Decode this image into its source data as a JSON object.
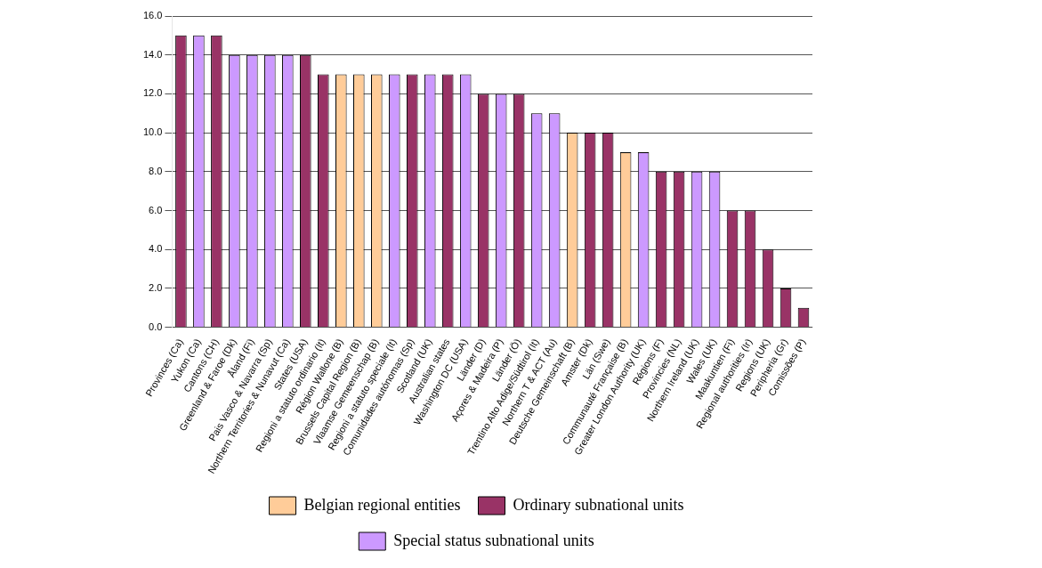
{
  "chart_data": {
    "type": "bar",
    "categories": [
      "Provinces (Ca)",
      "Yukon (Ca)",
      "Cantons (CH)",
      "Greenland & Faroe (Dk)",
      "Åland (Fi)",
      "Pais Vasco & Navarra (Sp)",
      "Northern Territories & Nunavut (Ca)",
      "States (USA)",
      "Regioni a statuto ordinario (It)",
      "Région Wallone (B)",
      "Brussels Capital Region (B)",
      "Vlaamse Gemeenschap (B)",
      "Regioni a statuto speciale (It)",
      "Comunidades autónomas (Sp)",
      "Scotland (UK)",
      "Australian states",
      "Washington DC (USA)",
      "Länder (D)",
      "Açores & Madeira (P)",
      "Länder (Ö)",
      "Trentino Alto Adige/Südtirol (It)",
      "Northern T & ACT (Au)",
      "Deutsche Gemeinschaft (B)",
      "Amster (Dk)",
      "Län (Swe)",
      "Communauté Française (B)",
      "Greater London Authority (UK)",
      "Régions (F)",
      "Provincies (NL)",
      "Northern Ireland (UK)",
      "Wales (UK)",
      "Maakuntien (Fi)",
      "Regional authorities (Ir)",
      "Regions (UK)",
      "Peripheria (Gr)",
      "Comissões (P)"
    ],
    "series": [
      {
        "name": "Belgian regional entities",
        "color": "#ffcc99",
        "values": [
          null,
          null,
          null,
          null,
          null,
          null,
          null,
          null,
          null,
          13,
          13,
          13,
          null,
          null,
          null,
          null,
          null,
          null,
          null,
          null,
          null,
          null,
          10,
          null,
          null,
          9,
          null,
          null,
          null,
          null,
          null,
          null,
          null,
          null,
          null,
          null
        ]
      },
      {
        "name": "Ordinary subnational units",
        "color": "#993366",
        "values": [
          15,
          null,
          15,
          null,
          null,
          null,
          null,
          14,
          13,
          null,
          null,
          null,
          null,
          13,
          null,
          13,
          null,
          12,
          null,
          12,
          null,
          null,
          null,
          10,
          10,
          null,
          null,
          8,
          8,
          null,
          null,
          6,
          6,
          4,
          2,
          1
        ]
      },
      {
        "name": "Special status subnational units",
        "color": "#cc99ff",
        "values": [
          null,
          15,
          null,
          14,
          14,
          14,
          14,
          null,
          null,
          null,
          null,
          null,
          13,
          null,
          13,
          null,
          13,
          null,
          12,
          null,
          11,
          11,
          null,
          null,
          null,
          null,
          9,
          null,
          null,
          8,
          8,
          null,
          null,
          null,
          null,
          null
        ]
      }
    ],
    "ylim": [
      0,
      16
    ],
    "yticks": [
      {
        "value": 0,
        "label": "0.0"
      },
      {
        "value": 2,
        "label": "2.0"
      },
      {
        "value": 4,
        "label": "4.0"
      },
      {
        "value": 6,
        "label": "6.0"
      },
      {
        "value": 8,
        "label": "8.0"
      },
      {
        "value": 10,
        "label": "10.0"
      },
      {
        "value": 12,
        "label": "12.0"
      },
      {
        "value": 14,
        "label": "14.0"
      },
      {
        "value": 16,
        "label": "16.0"
      }
    ],
    "grid": "y",
    "legend": "bottom"
  }
}
